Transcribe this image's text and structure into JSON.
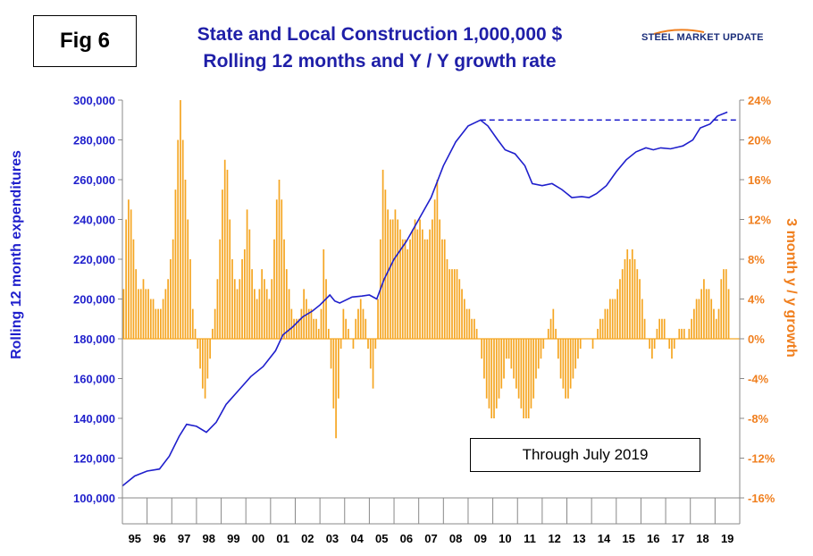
{
  "fig_label": "Fig 6",
  "title": "State and Local Construction 1,000,000 $",
  "subtitle": "Rolling 12 months and Y / Y growth rate",
  "brand": "STEEL MARKET UPDATE",
  "annotation": "Through July 2019",
  "colors": {
    "line": "#1f1fcc",
    "bars": "#f5a623",
    "right_axis": "#f07f1e",
    "title": "#1f1fa8"
  },
  "chart_data": {
    "type": "bar+line",
    "ylabel_left": "Rolling 12 month expenditures",
    "ylabel_right": "3 month y / y growth",
    "ylim_left": [
      100000,
      300000
    ],
    "ylim_right": [
      -16,
      24
    ],
    "yticks_left": [
      "300,000",
      "280,000",
      "260,000",
      "240,000",
      "220,000",
      "200,000",
      "180,000",
      "160,000",
      "140,000",
      "120,000",
      "100,000"
    ],
    "yticks_right": [
      "24%",
      "20%",
      "16%",
      "12%",
      "8%",
      "4%",
      "0%",
      "-4%",
      "-8%",
      "-12%",
      "-16%"
    ],
    "years": [
      "95",
      "96",
      "97",
      "98",
      "99",
      "00",
      "01",
      "02",
      "03",
      "04",
      "05",
      "06",
      "07",
      "08",
      "09",
      "10",
      "11",
      "12",
      "13",
      "14",
      "15",
      "16",
      "17",
      "18",
      "19"
    ],
    "line_series": {
      "name": "Rolling 12 month expenditures",
      "points": [
        [
          1995.0,
          106000
        ],
        [
          1995.5,
          111000
        ],
        [
          1996.0,
          113500
        ],
        [
          1996.5,
          114500
        ],
        [
          1996.9,
          121000
        ],
        [
          1997.3,
          131000
        ],
        [
          1997.6,
          137000
        ],
        [
          1998.0,
          136000
        ],
        [
          1998.4,
          133000
        ],
        [
          1998.8,
          138000
        ],
        [
          1999.2,
          147000
        ],
        [
          1999.7,
          154000
        ],
        [
          2000.2,
          161000
        ],
        [
          2000.7,
          166000
        ],
        [
          2001.2,
          174000
        ],
        [
          2001.5,
          182000
        ],
        [
          2001.9,
          186000
        ],
        [
          2002.3,
          191000
        ],
        [
          2002.7,
          194000
        ],
        [
          2003.0,
          197000
        ],
        [
          2003.4,
          202000
        ],
        [
          2003.6,
          199000
        ],
        [
          2003.8,
          198000
        ],
        [
          2004.3,
          201000
        ],
        [
          2004.7,
          201500
        ],
        [
          2005.0,
          202000
        ],
        [
          2005.3,
          200000
        ],
        [
          2005.6,
          210000
        ],
        [
          2006.0,
          220000
        ],
        [
          2006.5,
          229000
        ],
        [
          2007.0,
          240000
        ],
        [
          2007.5,
          251000
        ],
        [
          2008.0,
          267000
        ],
        [
          2008.5,
          279000
        ],
        [
          2009.0,
          287000
        ],
        [
          2009.5,
          290000
        ],
        [
          2009.8,
          287000
        ],
        [
          2010.2,
          280000
        ],
        [
          2010.5,
          275000
        ],
        [
          2010.9,
          273000
        ],
        [
          2011.3,
          267000
        ],
        [
          2011.6,
          258000
        ],
        [
          2012.0,
          257000
        ],
        [
          2012.4,
          258000
        ],
        [
          2012.8,
          255000
        ],
        [
          2013.2,
          251000
        ],
        [
          2013.6,
          251500
        ],
        [
          2013.9,
          251000
        ],
        [
          2014.2,
          253000
        ],
        [
          2014.6,
          257000
        ],
        [
          2015.0,
          264000
        ],
        [
          2015.4,
          270000
        ],
        [
          2015.8,
          274000
        ],
        [
          2016.2,
          276000
        ],
        [
          2016.5,
          275000
        ],
        [
          2016.8,
          276000
        ],
        [
          2017.2,
          275500
        ],
        [
          2017.7,
          277000
        ],
        [
          2018.1,
          280000
        ],
        [
          2018.4,
          286000
        ],
        [
          2018.8,
          288000
        ],
        [
          2019.1,
          292000
        ],
        [
          2019.5,
          294000
        ]
      ]
    },
    "bar_series": {
      "name": "3 month y / y growth",
      "points": [
        [
          1995.0,
          5
        ],
        [
          1995.1,
          12
        ],
        [
          1995.2,
          14
        ],
        [
          1995.3,
          13
        ],
        [
          1995.4,
          10
        ],
        [
          1995.5,
          7
        ],
        [
          1995.6,
          5
        ],
        [
          1995.7,
          5
        ],
        [
          1995.8,
          6
        ],
        [
          1995.9,
          5
        ],
        [
          1996.0,
          5
        ],
        [
          1996.1,
          4
        ],
        [
          1996.2,
          4
        ],
        [
          1996.3,
          3
        ],
        [
          1996.4,
          3
        ],
        [
          1996.5,
          3
        ],
        [
          1996.6,
          4
        ],
        [
          1996.7,
          5
        ],
        [
          1996.8,
          6
        ],
        [
          1996.9,
          8
        ],
        [
          1997.0,
          10
        ],
        [
          1997.1,
          15
        ],
        [
          1997.2,
          20
        ],
        [
          1997.3,
          24
        ],
        [
          1997.4,
          20
        ],
        [
          1997.5,
          16
        ],
        [
          1997.6,
          12
        ],
        [
          1997.7,
          8
        ],
        [
          1997.8,
          3
        ],
        [
          1997.9,
          1
        ],
        [
          1998.0,
          -1
        ],
        [
          1998.1,
          -3
        ],
        [
          1998.2,
          -5
        ],
        [
          1998.3,
          -6
        ],
        [
          1998.4,
          -4
        ],
        [
          1998.5,
          -2
        ],
        [
          1998.6,
          1
        ],
        [
          1998.7,
          3
        ],
        [
          1998.8,
          6
        ],
        [
          1998.9,
          10
        ],
        [
          1999.0,
          15
        ],
        [
          1999.1,
          18
        ],
        [
          1999.2,
          17
        ],
        [
          1999.3,
          12
        ],
        [
          1999.4,
          8
        ],
        [
          1999.5,
          6
        ],
        [
          1999.6,
          5
        ],
        [
          1999.7,
          6
        ],
        [
          1999.8,
          8
        ],
        [
          1999.9,
          9
        ],
        [
          2000.0,
          13
        ],
        [
          2000.1,
          11
        ],
        [
          2000.2,
          7
        ],
        [
          2000.3,
          5
        ],
        [
          2000.4,
          4
        ],
        [
          2000.5,
          5
        ],
        [
          2000.6,
          7
        ],
        [
          2000.7,
          6
        ],
        [
          2000.8,
          5
        ],
        [
          2000.9,
          4
        ],
        [
          2001.0,
          6
        ],
        [
          2001.1,
          10
        ],
        [
          2001.2,
          14
        ],
        [
          2001.3,
          16
        ],
        [
          2001.4,
          14
        ],
        [
          2001.5,
          10
        ],
        [
          2001.6,
          7
        ],
        [
          2001.7,
          5
        ],
        [
          2001.8,
          3
        ],
        [
          2001.9,
          2
        ],
        [
          2002.0,
          2
        ],
        [
          2002.1,
          2
        ],
        [
          2002.2,
          3
        ],
        [
          2002.3,
          5
        ],
        [
          2002.4,
          4
        ],
        [
          2002.5,
          3
        ],
        [
          2002.6,
          3
        ],
        [
          2002.7,
          2
        ],
        [
          2002.8,
          2
        ],
        [
          2002.9,
          1
        ],
        [
          2003.0,
          3
        ],
        [
          2003.1,
          9
        ],
        [
          2003.2,
          6
        ],
        [
          2003.3,
          1
        ],
        [
          2003.4,
          -3
        ],
        [
          2003.5,
          -7
        ],
        [
          2003.6,
          -10
        ],
        [
          2003.7,
          -6
        ],
        [
          2003.8,
          -1
        ],
        [
          2003.9,
          3
        ],
        [
          2004.0,
          2
        ],
        [
          2004.1,
          1
        ],
        [
          2004.2,
          0
        ],
        [
          2004.3,
          -1
        ],
        [
          2004.4,
          2
        ],
        [
          2004.5,
          3
        ],
        [
          2004.6,
          4
        ],
        [
          2004.7,
          3
        ],
        [
          2004.8,
          2
        ],
        [
          2004.9,
          -1
        ],
        [
          2005.0,
          -3
        ],
        [
          2005.1,
          -5
        ],
        [
          2005.2,
          -1
        ],
        [
          2005.3,
          4
        ],
        [
          2005.4,
          10
        ],
        [
          2005.5,
          17
        ],
        [
          2005.6,
          15
        ],
        [
          2005.7,
          13
        ],
        [
          2005.8,
          12
        ],
        [
          2005.9,
          12
        ],
        [
          2006.0,
          13
        ],
        [
          2006.1,
          12
        ],
        [
          2006.2,
          11
        ],
        [
          2006.3,
          10
        ],
        [
          2006.4,
          10
        ],
        [
          2006.5,
          9
        ],
        [
          2006.6,
          10
        ],
        [
          2006.7,
          11
        ],
        [
          2006.8,
          12
        ],
        [
          2006.9,
          11
        ],
        [
          2007.0,
          12
        ],
        [
          2007.1,
          11
        ],
        [
          2007.2,
          10
        ],
        [
          2007.3,
          10
        ],
        [
          2007.4,
          11
        ],
        [
          2007.5,
          12
        ],
        [
          2007.6,
          14
        ],
        [
          2007.7,
          16
        ],
        [
          2007.8,
          12
        ],
        [
          2007.9,
          10
        ],
        [
          2008.0,
          10
        ],
        [
          2008.1,
          8
        ],
        [
          2008.2,
          7
        ],
        [
          2008.3,
          7
        ],
        [
          2008.4,
          7
        ],
        [
          2008.5,
          7
        ],
        [
          2008.6,
          6
        ],
        [
          2008.7,
          5
        ],
        [
          2008.8,
          4
        ],
        [
          2008.9,
          3
        ],
        [
          2009.0,
          3
        ],
        [
          2009.1,
          2
        ],
        [
          2009.2,
          2
        ],
        [
          2009.3,
          1
        ],
        [
          2009.4,
          0
        ],
        [
          2009.5,
          -2
        ],
        [
          2009.6,
          -4
        ],
        [
          2009.7,
          -6
        ],
        [
          2009.8,
          -7
        ],
        [
          2009.9,
          -8
        ],
        [
          2010.0,
          -8
        ],
        [
          2010.1,
          -7
        ],
        [
          2010.2,
          -6
        ],
        [
          2010.3,
          -5
        ],
        [
          2010.4,
          -4
        ],
        [
          2010.5,
          -2
        ],
        [
          2010.6,
          -2
        ],
        [
          2010.7,
          -3
        ],
        [
          2010.8,
          -4
        ],
        [
          2010.9,
          -5
        ],
        [
          2011.0,
          -6
        ],
        [
          2011.1,
          -7
        ],
        [
          2011.2,
          -8
        ],
        [
          2011.3,
          -8
        ],
        [
          2011.4,
          -8
        ],
        [
          2011.5,
          -7
        ],
        [
          2011.6,
          -6
        ],
        [
          2011.7,
          -4
        ],
        [
          2011.8,
          -3
        ],
        [
          2011.9,
          -2
        ],
        [
          2012.0,
          -1
        ],
        [
          2012.1,
          0
        ],
        [
          2012.2,
          1
        ],
        [
          2012.3,
          2
        ],
        [
          2012.4,
          3
        ],
        [
          2012.5,
          1
        ],
        [
          2012.6,
          -2
        ],
        [
          2012.7,
          -4
        ],
        [
          2012.8,
          -5
        ],
        [
          2012.9,
          -6
        ],
        [
          2013.0,
          -6
        ],
        [
          2013.1,
          -5
        ],
        [
          2013.2,
          -4
        ],
        [
          2013.3,
          -3
        ],
        [
          2013.4,
          -2
        ],
        [
          2013.5,
          -1
        ],
        [
          2013.6,
          0
        ],
        [
          2013.7,
          0
        ],
        [
          2013.8,
          0
        ],
        [
          2013.9,
          0
        ],
        [
          2014.0,
          -1
        ],
        [
          2014.1,
          0
        ],
        [
          2014.2,
          1
        ],
        [
          2014.3,
          2
        ],
        [
          2014.4,
          2
        ],
        [
          2014.5,
          3
        ],
        [
          2014.6,
          3
        ],
        [
          2014.7,
          4
        ],
        [
          2014.8,
          4
        ],
        [
          2014.9,
          4
        ],
        [
          2015.0,
          5
        ],
        [
          2015.1,
          6
        ],
        [
          2015.2,
          7
        ],
        [
          2015.3,
          8
        ],
        [
          2015.4,
          9
        ],
        [
          2015.5,
          8
        ],
        [
          2015.6,
          9
        ],
        [
          2015.7,
          8
        ],
        [
          2015.8,
          7
        ],
        [
          2015.9,
          6
        ],
        [
          2016.0,
          4
        ],
        [
          2016.1,
          2
        ],
        [
          2016.2,
          0
        ],
        [
          2016.3,
          -1
        ],
        [
          2016.4,
          -2
        ],
        [
          2016.5,
          -1
        ],
        [
          2016.6,
          1
        ],
        [
          2016.7,
          2
        ],
        [
          2016.8,
          2
        ],
        [
          2016.9,
          2
        ],
        [
          2017.0,
          0
        ],
        [
          2017.1,
          -1
        ],
        [
          2017.2,
          -2
        ],
        [
          2017.3,
          -1
        ],
        [
          2017.4,
          0
        ],
        [
          2017.5,
          1
        ],
        [
          2017.6,
          1
        ],
        [
          2017.7,
          1
        ],
        [
          2017.8,
          0
        ],
        [
          2017.9,
          1
        ],
        [
          2018.0,
          2
        ],
        [
          2018.1,
          3
        ],
        [
          2018.2,
          4
        ],
        [
          2018.3,
          4
        ],
        [
          2018.4,
          5
        ],
        [
          2018.5,
          6
        ],
        [
          2018.6,
          5
        ],
        [
          2018.7,
          5
        ],
        [
          2018.8,
          4
        ],
        [
          2018.9,
          3
        ],
        [
          2019.0,
          2
        ],
        [
          2019.1,
          3
        ],
        [
          2019.2,
          6
        ],
        [
          2019.3,
          7
        ],
        [
          2019.4,
          7
        ],
        [
          2019.5,
          5
        ]
      ]
    },
    "reference_line": {
      "value": 290000,
      "style": "dashed",
      "from": 2009.5,
      "to": 2020.0
    },
    "grid": false,
    "legend": "none"
  }
}
